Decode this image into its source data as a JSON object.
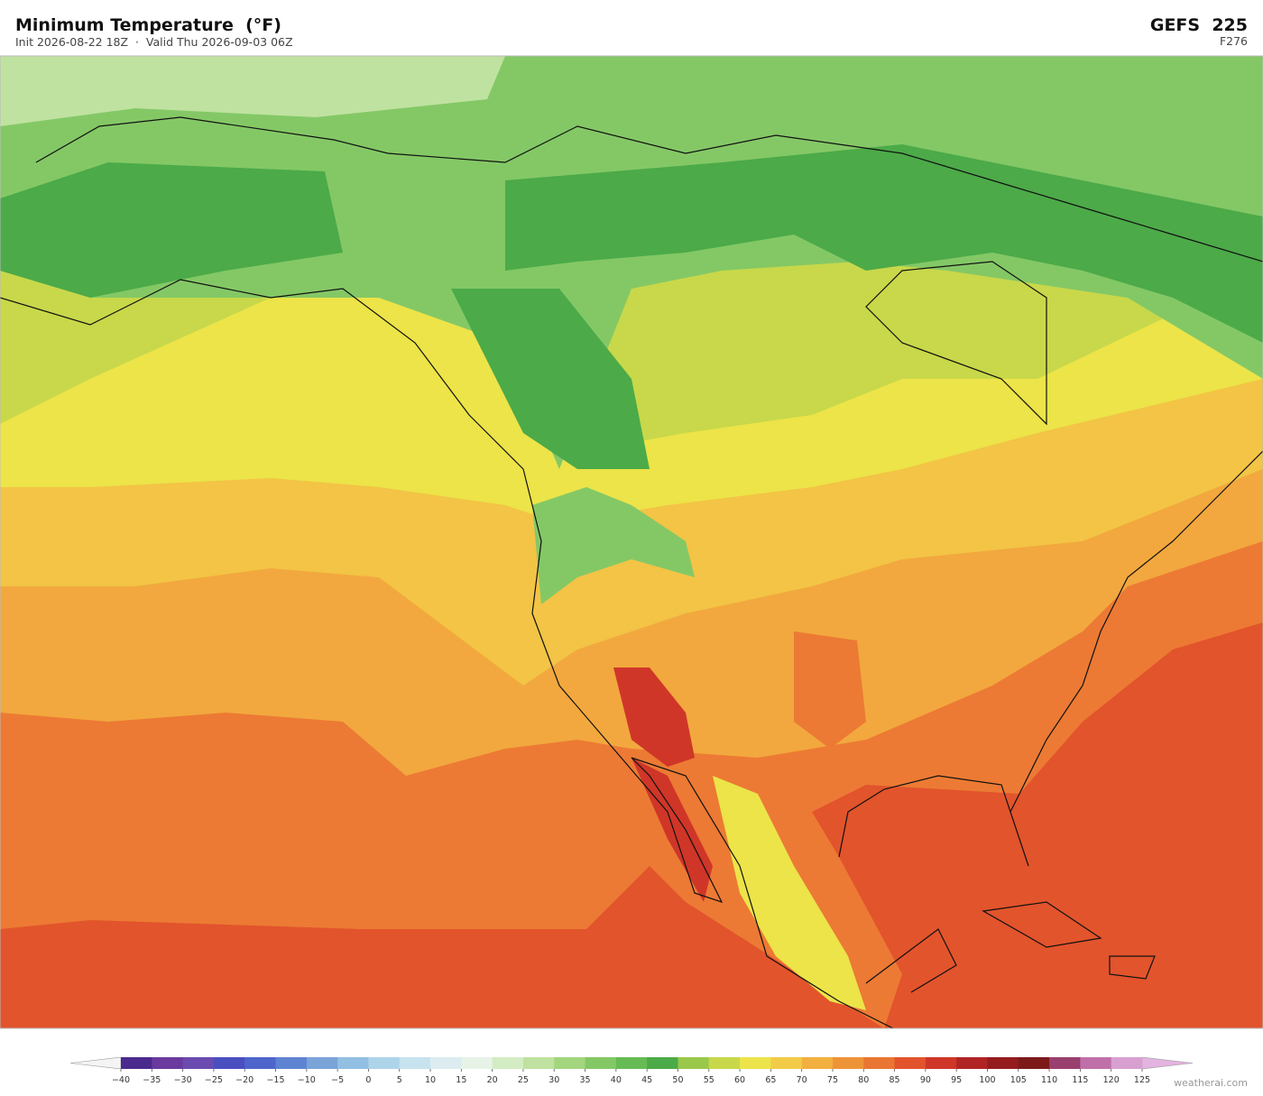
{
  "header": {
    "title": "Minimum Temperature  (°F)",
    "subtitle": "Init 2026-08-22 18Z  ·  Valid Thu 2026-09-03 06Z",
    "model": "GEFS  225",
    "forecast_hour": "F276"
  },
  "colorbar": {
    "ticks": [
      {
        "value": -40,
        "label": "−40"
      },
      {
        "value": -35,
        "label": "−35"
      },
      {
        "value": -30,
        "label": "−30"
      },
      {
        "value": -25,
        "label": "−25"
      },
      {
        "value": -20,
        "label": "−20"
      },
      {
        "value": -15,
        "label": "−15"
      },
      {
        "value": -10,
        "label": "−10"
      },
      {
        "value": -5,
        "label": "−5"
      },
      0,
      5,
      10,
      15,
      20,
      25,
      30,
      35,
      40,
      45,
      50,
      55,
      60,
      65,
      70,
      75,
      80,
      85,
      90,
      95,
      100,
      105,
      110,
      115,
      120,
      125
    ],
    "colors": [
      "#4b2a8e",
      "#6a3a9e",
      "#6b4bb0",
      "#4a4fc0",
      "#4e65cc",
      "#5e83d2",
      "#7aa3d8",
      "#92bfe2",
      "#aed4ea",
      "#c6e3ef",
      "#dcecf0",
      "#e8f3e8",
      "#d4ecc4",
      "#bfe2a0",
      "#a3d67f",
      "#84c866",
      "#66bb55",
      "#4caa48",
      "#9ac84a",
      "#c8d84a",
      "#ece44a",
      "#f2cc48",
      "#f2b040",
      "#ee9438",
      "#e97632",
      "#e2542c",
      "#cf3628",
      "#b02424",
      "#951c1e",
      "#7c1a1a",
      "#9a406e",
      "#c070a8",
      "#d8a0d0"
    ],
    "extend_colors": [
      "#f4f4f4",
      "#e4b4e0"
    ]
  },
  "watermark": "weatherai.com"
}
